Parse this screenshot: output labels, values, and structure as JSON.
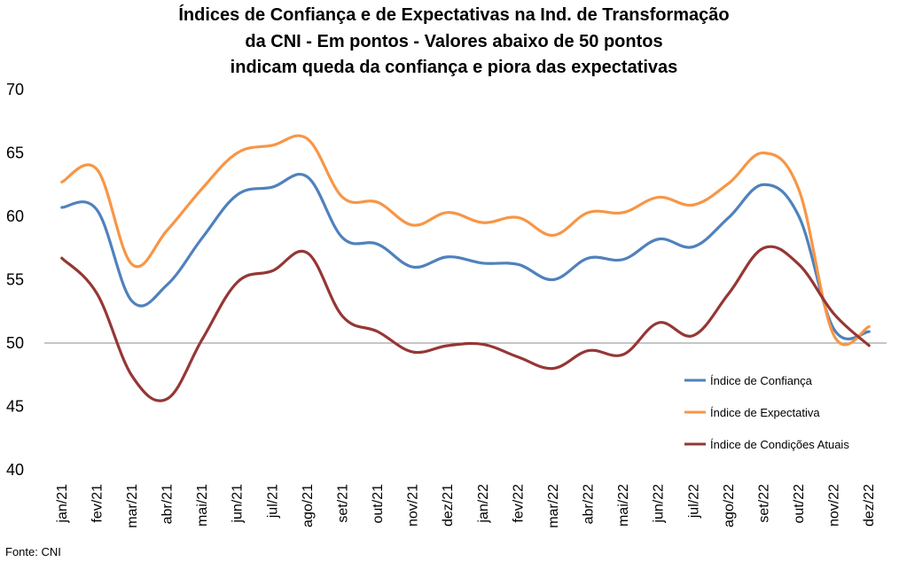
{
  "chart_data": {
    "type": "line",
    "title_lines": [
      "Índices de Confiança e de Expectativas na Ind. de Transformação",
      "da CNI - Em pontos - Valores abaixo de 50 pontos",
      "indicam queda da confiança e piora das expectativas"
    ],
    "xlabel": "",
    "ylabel": "",
    "ylim": [
      40,
      70
    ],
    "yticks": [
      "40",
      "45",
      "50",
      "55",
      "60",
      "65",
      "70"
    ],
    "reference_line": 50,
    "grid": false,
    "legend_position": "right",
    "categories": [
      "jan/21",
      "fev/21",
      "mar/21",
      "abr/21",
      "mai/21",
      "jun/21",
      "jul/21",
      "ago/21",
      "set/21",
      "out/21",
      "nov/21",
      "dez/21",
      "jan/22",
      "fev/22",
      "mar/22",
      "abr/22",
      "mai/22",
      "jun/22",
      "jul/22",
      "ago/22",
      "set/22",
      "out/22",
      "nov/22",
      "dez/22"
    ],
    "series": [
      {
        "name": "Índice de Confiança",
        "color": "#4F81BD",
        "values": [
          60.7,
          60.5,
          53.3,
          54.6,
          58.3,
          61.7,
          62.3,
          63.1,
          58.3,
          57.8,
          56.0,
          56.8,
          56.3,
          56.2,
          55.0,
          56.7,
          56.6,
          58.2,
          57.6,
          59.9,
          62.5,
          60.0,
          51.1,
          50.9
        ]
      },
      {
        "name": "Índice de Expectativa",
        "color": "#F79646",
        "values": [
          62.7,
          63.7,
          56.2,
          58.9,
          62.2,
          65.0,
          65.6,
          66.1,
          61.5,
          61.1,
          59.3,
          60.3,
          59.5,
          59.9,
          58.5,
          60.3,
          60.3,
          61.5,
          60.9,
          62.6,
          65.0,
          62.1,
          50.6,
          51.3
        ]
      },
      {
        "name": "Índice de Condições Atuais",
        "color": "#953735",
        "values": [
          56.7,
          53.9,
          47.4,
          45.6,
          50.3,
          54.8,
          55.7,
          57.1,
          52.1,
          50.9,
          49.3,
          49.8,
          49.9,
          48.9,
          48.0,
          49.4,
          49.1,
          51.6,
          50.6,
          53.9,
          57.5,
          56.2,
          52.3,
          49.8
        ]
      }
    ],
    "source": "Fonte: CNI"
  }
}
